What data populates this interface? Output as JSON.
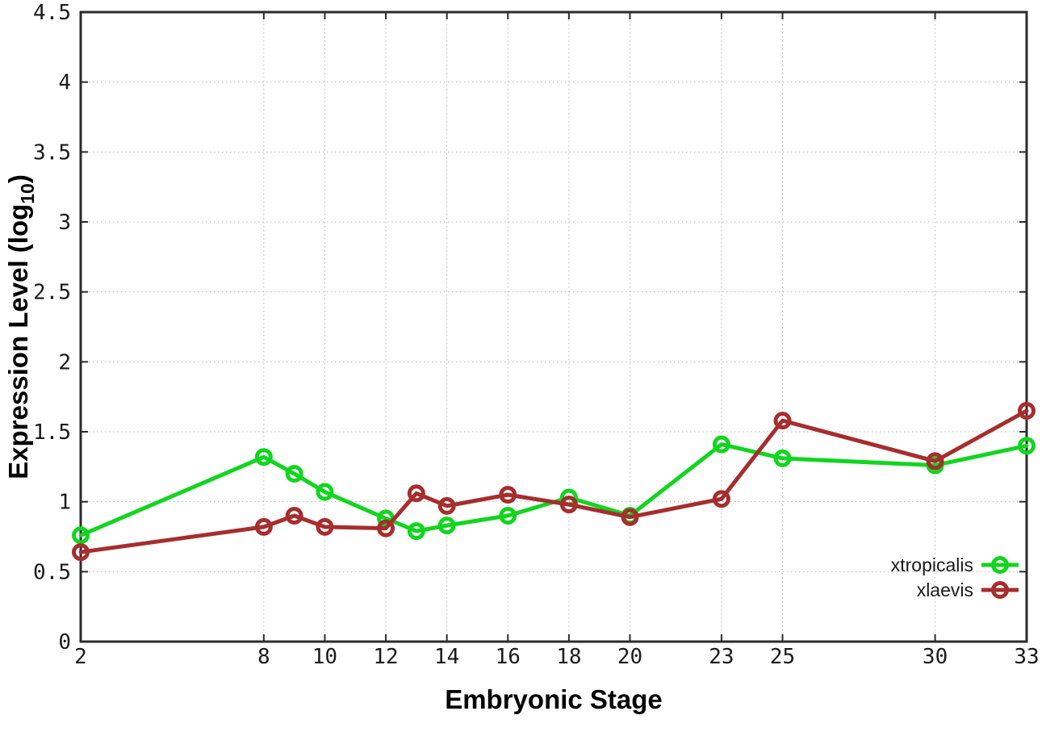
{
  "chart_data": {
    "type": "line",
    "title": "",
    "xlabel": "Embryonic Stage",
    "ylabel": "Expression Level (log10)",
    "ylabel_parts": {
      "main": "Expression Level (log",
      "sub": "10",
      "close": ")"
    },
    "x": [
      2,
      8,
      9,
      10,
      12,
      13,
      14,
      16,
      18,
      20,
      23,
      25,
      30,
      33
    ],
    "xlim": [
      2,
      33
    ],
    "ylim": [
      0,
      4.5
    ],
    "xticks": [
      2,
      8,
      10,
      12,
      14,
      16,
      18,
      20,
      23,
      25,
      30,
      33
    ],
    "xtick_labels": [
      "2",
      "8",
      "10",
      "12",
      "14",
      "16",
      "18",
      "20",
      "23",
      "25",
      "30",
      "33"
    ],
    "yticks": [
      0,
      0.5,
      1,
      1.5,
      2,
      2.5,
      3,
      3.5,
      4,
      4.5
    ],
    "ytick_labels": [
      "0",
      "0.5",
      "1",
      "1.5",
      "2",
      "2.5",
      "3",
      "3.5",
      "4",
      "4.5"
    ],
    "grid": true,
    "legend_position": "bottom-right",
    "marker": "open-circle",
    "series": [
      {
        "name": "xtropicalis",
        "color": "#12d51f",
        "values": [
          0.76,
          1.32,
          1.2,
          1.07,
          0.88,
          0.79,
          0.83,
          0.9,
          1.03,
          0.9,
          1.41,
          1.31,
          1.26,
          1.4
        ]
      },
      {
        "name": "xlaevis",
        "color": "#a62e2e",
        "values": [
          0.64,
          0.82,
          0.9,
          0.82,
          0.81,
          1.06,
          0.97,
          1.05,
          0.98,
          0.89,
          1.02,
          1.58,
          1.29,
          1.65
        ]
      }
    ]
  },
  "style": {
    "background": "#ffffff",
    "grid_color": "#b5b5b5",
    "axis_color": "#2b2b2b",
    "tick_text_color": "#1a1a1a",
    "title_text_color": "#000000"
  }
}
